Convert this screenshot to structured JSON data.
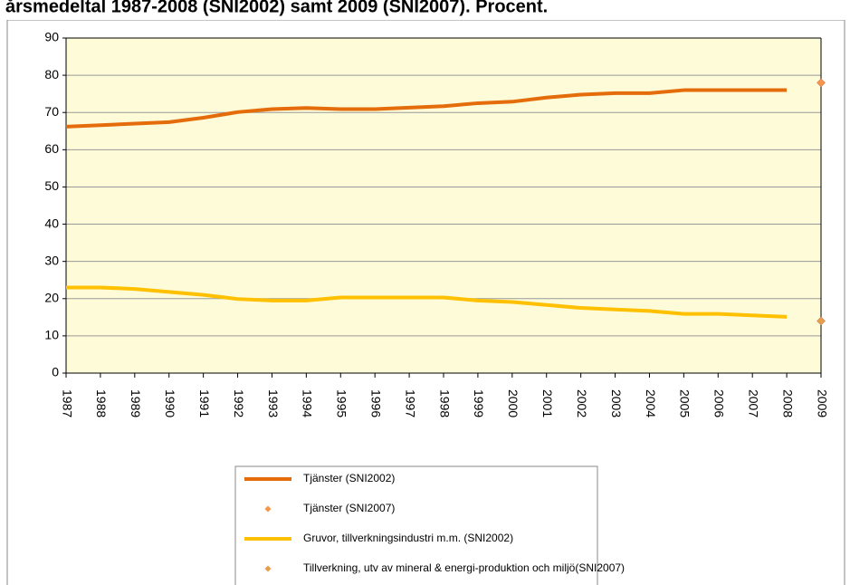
{
  "chart_data": {
    "type": "line",
    "title": "årsmedeltal 1987-2008 (SNI2002) samt 2009 (SNI2007). Procent.",
    "categories": [
      "1987",
      "1988",
      "1989",
      "1990",
      "1991",
      "1992",
      "1993",
      "1994",
      "1995",
      "1996",
      "1997",
      "1998",
      "1999",
      "2000",
      "2001",
      "2002",
      "2003",
      "2004",
      "2005",
      "2006",
      "2007",
      "2008",
      "2009"
    ],
    "ylim": [
      0,
      90
    ],
    "yticks": [
      0,
      10,
      20,
      30,
      40,
      50,
      60,
      70,
      80,
      90
    ],
    "grid": true,
    "legend": "bottom",
    "series": [
      {
        "name": "Tjänster (SNI2002)",
        "color": "#e46c0a",
        "style": "line",
        "values": [
          66.2,
          66.6,
          67.0,
          67.4,
          68.6,
          70.1,
          70.9,
          71.2,
          70.9,
          70.9,
          71.3,
          71.7,
          72.5,
          72.9,
          74.0,
          74.8,
          75.2,
          75.2,
          76.0,
          76.0,
          76.0,
          76.0,
          null
        ]
      },
      {
        "name": "Tjänster (SNI2007)",
        "color": "#f79646",
        "style": "marker",
        "values": [
          null,
          null,
          null,
          null,
          null,
          null,
          null,
          null,
          null,
          null,
          null,
          null,
          null,
          null,
          null,
          null,
          null,
          null,
          null,
          null,
          null,
          null,
          78.0
        ]
      },
      {
        "name": "Gruvor, tillverkningsindustri m.m. (SNI2002)",
        "color": "#ffc000",
        "style": "line",
        "values": [
          23.0,
          23.0,
          22.6,
          21.8,
          21.0,
          19.9,
          19.5,
          19.5,
          20.3,
          20.3,
          20.3,
          20.3,
          19.5,
          19.1,
          18.3,
          17.5,
          17.1,
          16.7,
          15.9,
          15.9,
          15.5,
          15.1,
          null
        ]
      },
      {
        "name": "Tillverkning, utv av mineral & energi-produktion och miljö(SNI2007)",
        "color": "#e6a04a",
        "style": "marker",
        "values": [
          null,
          null,
          null,
          null,
          null,
          null,
          null,
          null,
          null,
          null,
          null,
          null,
          null,
          null,
          null,
          null,
          null,
          null,
          null,
          null,
          null,
          null,
          14.0
        ]
      }
    ]
  }
}
